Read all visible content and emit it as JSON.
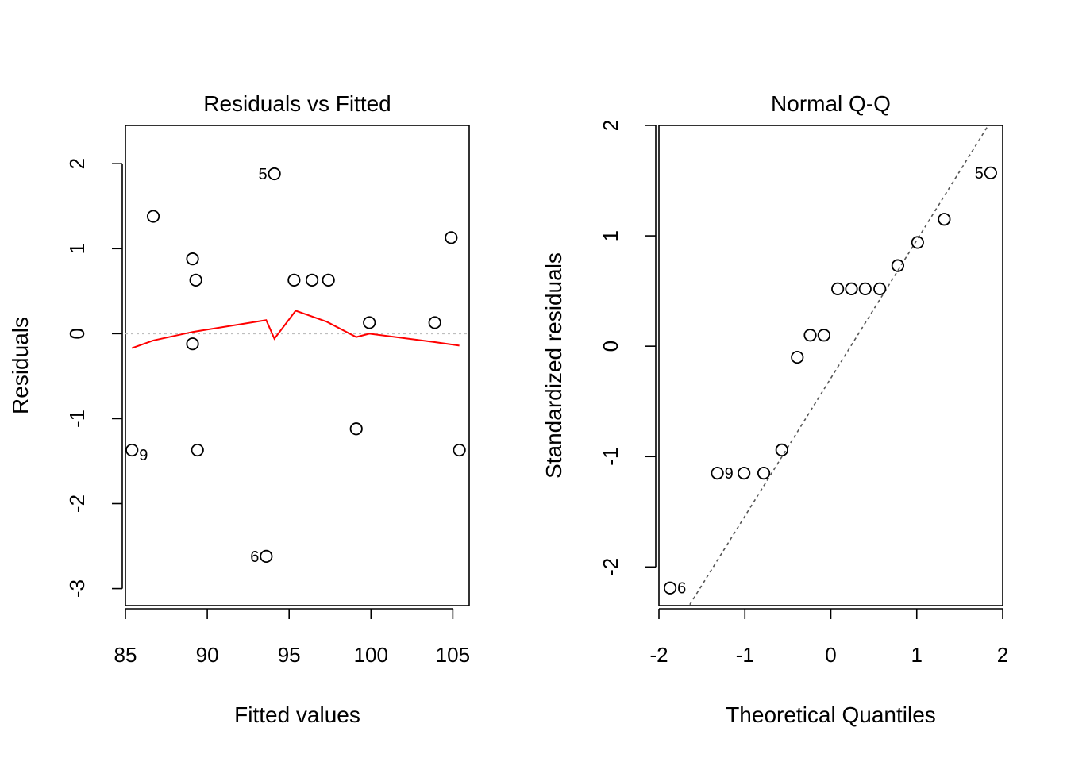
{
  "chart_data": [
    {
      "type": "scatter",
      "title": "Residuals vs Fitted",
      "xlabel": "Fitted values",
      "ylabel": "Residuals",
      "xlim": [
        85,
        106
      ],
      "ylim": [
        -3.2,
        2.45
      ],
      "xticks": [
        85,
        90,
        95,
        100,
        105
      ],
      "xtick_labels": [
        "85",
        "90",
        "95",
        "100",
        "105"
      ],
      "yticks": [
        -3,
        -2,
        -1,
        0,
        1,
        2
      ],
      "ytick_labels": [
        "-3",
        "-2",
        "-1",
        "0",
        "1",
        "2"
      ],
      "grid": false,
      "colors": {
        "points": "#000000",
        "smoother": "#ff0000",
        "refline": "#bebebe"
      },
      "points": [
        {
          "x": 85.4,
          "y": -1.37
        },
        {
          "x": 86.7,
          "y": 1.38
        },
        {
          "x": 89.1,
          "y": 0.88
        },
        {
          "x": 89.3,
          "y": 0.63
        },
        {
          "x": 89.1,
          "y": -0.12
        },
        {
          "x": 89.4,
          "y": -1.37
        },
        {
          "x": 93.6,
          "y": -2.62
        },
        {
          "x": 94.1,
          "y": 1.88
        },
        {
          "x": 95.3,
          "y": 0.63
        },
        {
          "x": 96.4,
          "y": 0.63
        },
        {
          "x": 97.4,
          "y": 0.63
        },
        {
          "x": 99.1,
          "y": -1.12
        },
        {
          "x": 99.9,
          "y": 0.13
        },
        {
          "x": 103.9,
          "y": 0.13
        },
        {
          "x": 104.9,
          "y": 1.13
        },
        {
          "x": 105.4,
          "y": -1.37
        }
      ],
      "point_labels": [
        {
          "label": "9",
          "x": 85.4,
          "y": -1.37,
          "side": "right"
        },
        {
          "label": "5",
          "x": 94.1,
          "y": 1.88,
          "side": "left"
        },
        {
          "label": "6",
          "x": 93.6,
          "y": -2.62,
          "side": "left"
        }
      ],
      "smoother": {
        "x": [
          85.4,
          86.7,
          89.1,
          93.6,
          94.1,
          95.4,
          97.3,
          99.1,
          99.9,
          103.9,
          105.4
        ],
        "y": [
          -0.17,
          -0.08,
          0.02,
          0.16,
          -0.06,
          0.27,
          0.14,
          -0.04,
          0.0,
          -0.1,
          -0.14
        ]
      },
      "refline_y": 0
    },
    {
      "type": "scatter",
      "title": "Normal Q-Q",
      "xlabel": "Theoretical Quantiles",
      "ylabel": "Standardized residuals",
      "xlim": [
        -2,
        2
      ],
      "ylim": [
        -2.35,
        2
      ],
      "xticks": [
        -2,
        -1,
        0,
        1,
        2
      ],
      "xtick_labels": [
        "-2",
        "-1",
        "0",
        "1",
        "2"
      ],
      "yticks": [
        -2,
        -1,
        0,
        1,
        2
      ],
      "ytick_labels": [
        "-2",
        "-1",
        "0",
        "1",
        "2"
      ],
      "grid": false,
      "colors": {
        "points": "#000000",
        "qqline": "#555555"
      },
      "points": [
        {
          "x": -1.87,
          "y": -2.19
        },
        {
          "x": -1.32,
          "y": -1.15
        },
        {
          "x": -1.01,
          "y": -1.15
        },
        {
          "x": -0.78,
          "y": -1.15
        },
        {
          "x": -0.57,
          "y": -0.94
        },
        {
          "x": -0.39,
          "y": -0.1
        },
        {
          "x": -0.24,
          "y": 0.1
        },
        {
          "x": -0.08,
          "y": 0.1
        },
        {
          "x": 0.08,
          "y": 0.52
        },
        {
          "x": 0.24,
          "y": 0.52
        },
        {
          "x": 0.4,
          "y": 0.52
        },
        {
          "x": 0.57,
          "y": 0.52
        },
        {
          "x": 0.78,
          "y": 0.73
        },
        {
          "x": 1.01,
          "y": 0.94
        },
        {
          "x": 1.32,
          "y": 1.15
        },
        {
          "x": 1.86,
          "y": 1.57
        }
      ],
      "point_labels": [
        {
          "label": "9",
          "x": -1.32,
          "y": -1.15,
          "side": "right"
        },
        {
          "label": "5",
          "x": 1.86,
          "y": 1.57,
          "side": "left"
        },
        {
          "label": "6",
          "x": -1.87,
          "y": -2.19,
          "side": "right"
        }
      ],
      "qqline": {
        "slope": 1.25,
        "intercept": -0.29
      }
    }
  ]
}
